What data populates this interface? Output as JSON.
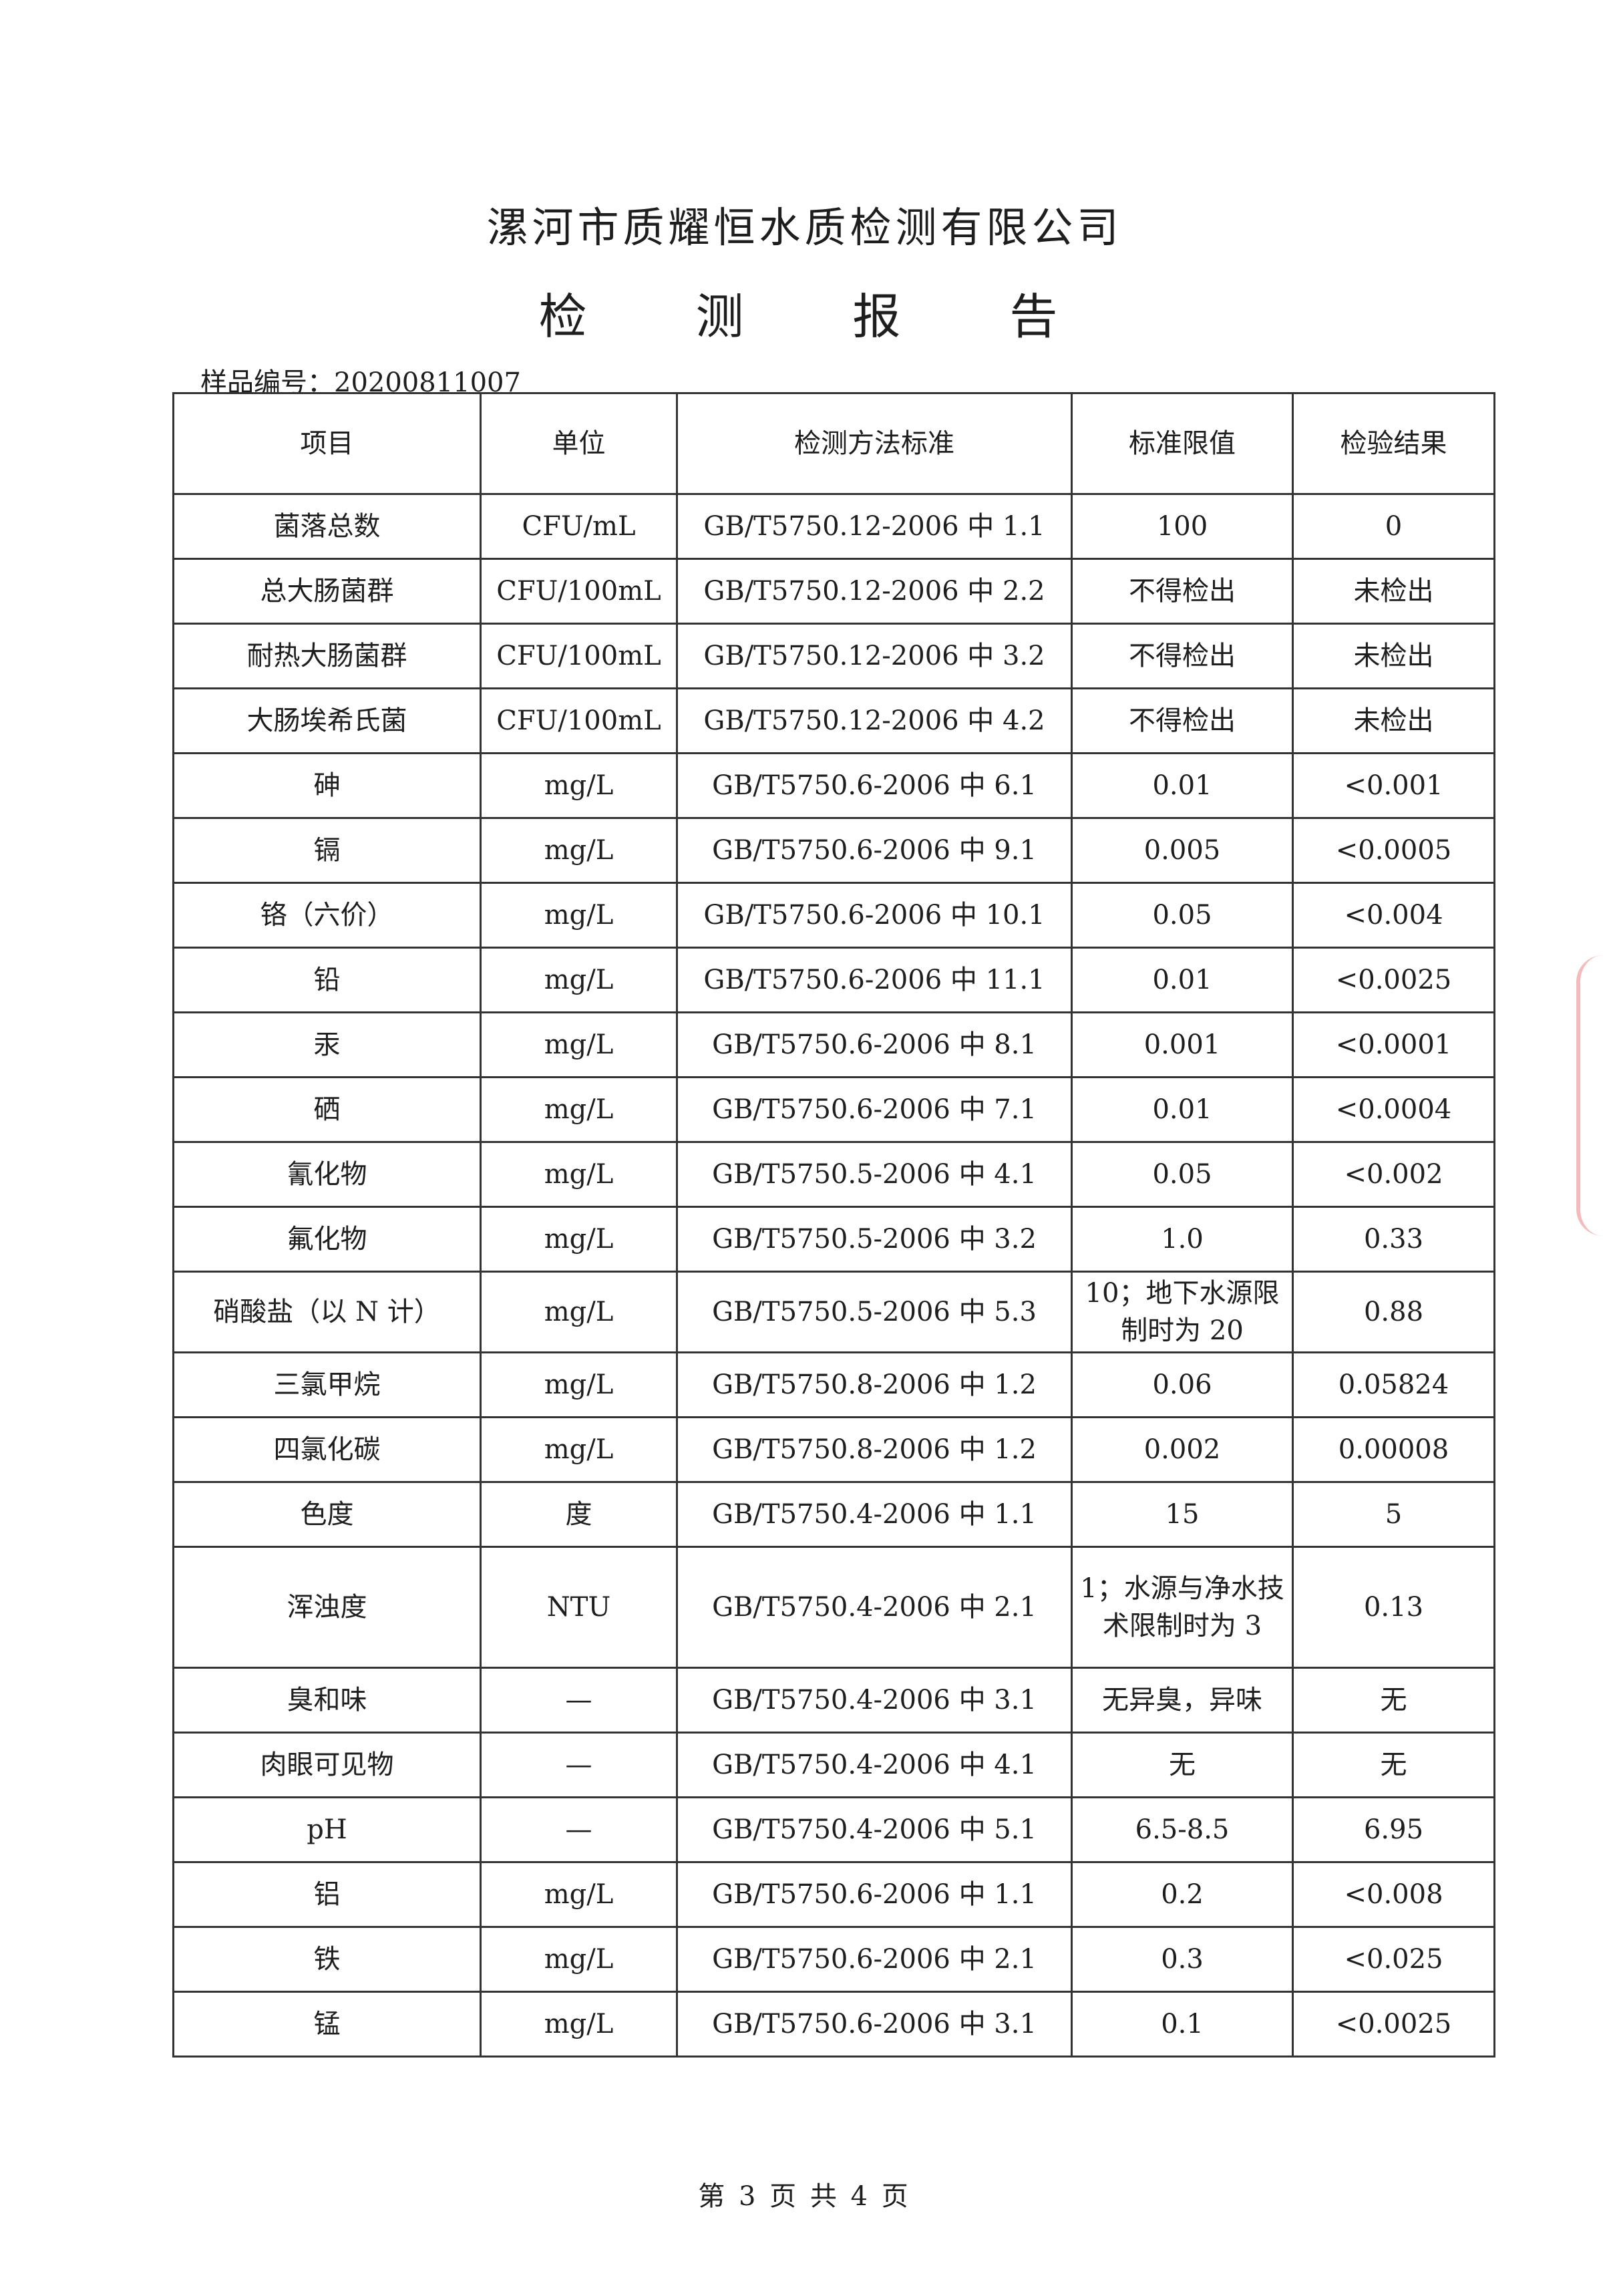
{
  "header": {
    "company": "漯河市质耀恒水质检测有限公司",
    "title": "检 测 报 告",
    "sample_label": "样品编号：",
    "sample_no": "20200811007"
  },
  "table": {
    "columns": [
      "项目",
      "单位",
      "检测方法标准",
      "标准限值",
      "检验结果"
    ],
    "rows": [
      [
        "菌落总数",
        "CFU/mL",
        "GB/T5750.12-2006 中 1.1",
        "100",
        "0"
      ],
      [
        "总大肠菌群",
        "CFU/100mL",
        "GB/T5750.12-2006 中 2.2",
        "不得检出",
        "未检出"
      ],
      [
        "耐热大肠菌群",
        "CFU/100mL",
        "GB/T5750.12-2006 中 3.2",
        "不得检出",
        "未检出"
      ],
      [
        "大肠埃希氏菌",
        "CFU/100mL",
        "GB/T5750.12-2006 中 4.2",
        "不得检出",
        "未检出"
      ],
      [
        "砷",
        "mg/L",
        "GB/T5750.6-2006 中 6.1",
        "0.01",
        "<0.001"
      ],
      [
        "镉",
        "mg/L",
        "GB/T5750.6-2006 中 9.1",
        "0.005",
        "<0.0005"
      ],
      [
        "铬（六价）",
        "mg/L",
        "GB/T5750.6-2006 中 10.1",
        "0.05",
        "<0.004"
      ],
      [
        "铅",
        "mg/L",
        "GB/T5750.6-2006 中 11.1",
        "0.01",
        "<0.0025"
      ],
      [
        "汞",
        "mg/L",
        "GB/T5750.6-2006 中 8.1",
        "0.001",
        "<0.0001"
      ],
      [
        "硒",
        "mg/L",
        "GB/T5750.6-2006 中 7.1",
        "0.01",
        "<0.0004"
      ],
      [
        "氰化物",
        "mg/L",
        "GB/T5750.5-2006 中 4.1",
        "0.05",
        "<0.002"
      ],
      [
        "氟化物",
        "mg/L",
        "GB/T5750.5-2006 中 3.2",
        "1.0",
        "0.33"
      ],
      [
        "硝酸盐（以 N 计）",
        "mg/L",
        "GB/T5750.5-2006 中 5.3",
        "10；地下水源限制时为 20",
        "0.88"
      ],
      [
        "三氯甲烷",
        "mg/L",
        "GB/T5750.8-2006 中 1.2",
        "0.06",
        "0.05824"
      ],
      [
        "四氯化碳",
        "mg/L",
        "GB/T5750.8-2006 中 1.2",
        "0.002",
        "0.00008"
      ],
      [
        "色度",
        "度",
        "GB/T5750.4-2006 中 1.1",
        "15",
        "5"
      ],
      [
        "浑浊度",
        "NTU",
        "GB/T5750.4-2006 中 2.1",
        "1；水源与净水技术限制时为 3",
        "0.13"
      ],
      [
        "臭和味",
        "—",
        "GB/T5750.4-2006 中 3.1",
        "无异臭，异味",
        "无"
      ],
      [
        "肉眼可见物",
        "—",
        "GB/T5750.4-2006 中 4.1",
        "无",
        "无"
      ],
      [
        "pH",
        "—",
        "GB/T5750.4-2006 中 5.1",
        "6.5-8.5",
        "6.95"
      ],
      [
        "铝",
        "mg/L",
        "GB/T5750.6-2006 中 1.1",
        "0.2",
        "<0.008"
      ],
      [
        "铁",
        "mg/L",
        "GB/T5750.6-2006 中 2.1",
        "0.3",
        "<0.025"
      ],
      [
        "锰",
        "mg/L",
        "GB/T5750.6-2006 中 3.1",
        "0.1",
        "<0.0025"
      ]
    ]
  },
  "footer": {
    "page": "第 3 页 共 4 页"
  },
  "colors": {
    "text": "#1e1e1e",
    "border": "#333333",
    "stamp": "#dc3c3c"
  }
}
